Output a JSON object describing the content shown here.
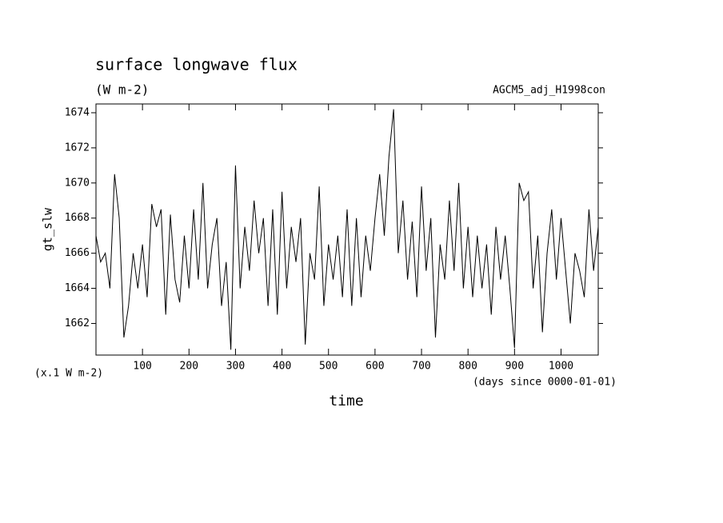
{
  "chart_data": {
    "type": "line",
    "title": "surface longwave flux",
    "subtitle": "(W m-2)",
    "annotation": "AGCM5_adj_H1998con",
    "y_label": "gt_slw",
    "x_label": "time",
    "y_unit_label": "(x.1 W m-2)",
    "x_unit_label": "(days since 0000-01-01)",
    "x": [
      0,
      10,
      20,
      30,
      40,
      50,
      60,
      70,
      80,
      90,
      100,
      110,
      120,
      130,
      140,
      150,
      160,
      170,
      180,
      190,
      200,
      210,
      220,
      230,
      240,
      250,
      260,
      270,
      280,
      290,
      300,
      310,
      320,
      330,
      340,
      350,
      360,
      370,
      380,
      390,
      400,
      410,
      420,
      430,
      440,
      450,
      460,
      470,
      480,
      490,
      500,
      510,
      520,
      530,
      540,
      550,
      560,
      570,
      580,
      590,
      600,
      610,
      620,
      630,
      640,
      650,
      660,
      670,
      680,
      690,
      700,
      710,
      720,
      730,
      740,
      750,
      760,
      770,
      780,
      790,
      800,
      810,
      820,
      830,
      840,
      850,
      860,
      870,
      880,
      890,
      900,
      910,
      920,
      930,
      940,
      950,
      960,
      970,
      980,
      990,
      1000,
      1010,
      1020,
      1030,
      1040,
      1050,
      1060,
      1070,
      1080
    ],
    "series": [
      {
        "name": "gt_slw",
        "color": "#000000",
        "values": [
          1667,
          1665.5,
          1666,
          1664,
          1670.5,
          1668,
          1661.2,
          1663,
          1666,
          1664,
          1666.5,
          1663.5,
          1668.8,
          1667.5,
          1668.5,
          1662.5,
          1668.2,
          1664.5,
          1663.2,
          1667,
          1664,
          1668.5,
          1664.5,
          1670,
          1664,
          1666.5,
          1668,
          1663,
          1665.5,
          1660.5,
          1671,
          1664,
          1667.5,
          1665,
          1669,
          1666,
          1668,
          1663,
          1668.5,
          1662.5,
          1669.5,
          1664,
          1667.5,
          1665.5,
          1668,
          1660.8,
          1666,
          1664.5,
          1669.8,
          1663,
          1666.5,
          1664.5,
          1667,
          1663.5,
          1668.5,
          1663,
          1668,
          1663.5,
          1667,
          1665,
          1668,
          1670.5,
          1667,
          1671.5,
          1674.2,
          1666,
          1669,
          1664.5,
          1667.8,
          1663.5,
          1669.8,
          1665,
          1668,
          1661.2,
          1666.5,
          1664.5,
          1669,
          1665,
          1670,
          1664,
          1667.5,
          1663.5,
          1667,
          1664,
          1666.5,
          1662.5,
          1667.5,
          1664.5,
          1667,
          1664,
          1660.6,
          1670,
          1669,
          1669.5,
          1664,
          1667,
          1661.5,
          1666,
          1668.5,
          1664.5,
          1668,
          1665,
          1662,
          1666,
          1665,
          1663.5,
          1668.5,
          1665,
          1667.5
        ]
      }
    ],
    "xlim": [
      0,
      1080
    ],
    "ylim": [
      1660.2,
      1674.5
    ],
    "xticks": [
      100,
      200,
      300,
      400,
      500,
      600,
      700,
      800,
      900,
      1000
    ],
    "yticks": [
      1662,
      1664,
      1666,
      1668,
      1670,
      1672,
      1674
    ]
  }
}
